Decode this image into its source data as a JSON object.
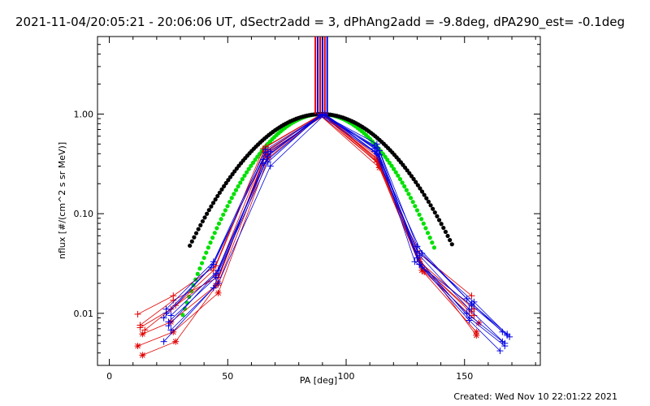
{
  "chart_data": {
    "type": "scatter",
    "title": "2021-11-04/20:05:21 - 20:06:06 UT, dSectr2add = 3, dPhAng2add = -9.8deg, dPA290_est= -0.1deg",
    "xlabel": "PA [deg]",
    "ylabel": "nflux [#/(cm^2 s sr MeV)]",
    "xlim": [
      -5,
      182
    ],
    "ylim": [
      0.003,
      6
    ],
    "yscale": "log",
    "xticks": [
      0,
      50,
      100,
      150
    ],
    "xtick_labels": [
      "0",
      "50",
      "100",
      "150"
    ],
    "yticks": [
      0.01,
      0.1,
      1.0
    ],
    "ytick_labels": [
      "0.01",
      "0.10",
      "1.00"
    ],
    "grid": false,
    "legend": "none",
    "footer": "Created: Wed Nov 10 22:01:22 2021",
    "colors": {
      "red": "#e00000",
      "blue": "#0000e0",
      "green": "#00e000",
      "black": "#000000"
    },
    "vertical_bars": [
      {
        "x": 87,
        "color": "#e00000"
      },
      {
        "x": 88,
        "color": "#0000e0"
      },
      {
        "x": 89,
        "color": "#e00000"
      },
      {
        "x": 90,
        "color": "#0000e0"
      },
      {
        "x": 91,
        "color": "#e00000"
      },
      {
        "x": 92,
        "color": "#0000e0"
      }
    ],
    "fit_curves": [
      {
        "color": "#00e000",
        "center": 89.5,
        "sigma": 19.2,
        "x_min": 31,
        "x_max": 138
      },
      {
        "color": "#000000",
        "center": 89.5,
        "sigma": 22.5,
        "x_min": 34,
        "x_max": 145
      }
    ],
    "series": [
      {
        "color": "#e00000",
        "marker": "plus",
        "x": [
          12,
          27,
          45,
          66,
          89,
          113,
          131,
          153
        ],
        "y": [
          0.0098,
          0.015,
          0.03,
          0.47,
          0.98,
          0.33,
          0.04,
          0.015
        ]
      },
      {
        "color": "#e00000",
        "marker": "asterisk",
        "x": [
          14,
          28,
          46,
          67,
          90,
          114,
          131,
          155
        ],
        "y": [
          0.0038,
          0.0052,
          0.02,
          0.39,
          0.99,
          0.31,
          0.035,
          0.006
        ]
      },
      {
        "color": "#e00000",
        "marker": "plus",
        "x": [
          13,
          26,
          45,
          66,
          90,
          113,
          132,
          154
        ],
        "y": [
          0.0072,
          0.011,
          0.024,
          0.42,
          1.0,
          0.36,
          0.03,
          0.0095
        ]
      },
      {
        "color": "#e00000",
        "marker": "asterisk",
        "x": [
          12,
          27,
          46,
          67,
          89,
          114,
          132,
          155
        ],
        "y": [
          0.0047,
          0.0065,
          0.016,
          0.36,
          0.97,
          0.29,
          0.027,
          0.0065
        ]
      },
      {
        "color": "#e00000",
        "marker": "plus",
        "x": [
          15,
          28,
          44,
          65,
          90,
          113,
          131,
          154
        ],
        "y": [
          0.0068,
          0.012,
          0.027,
          0.45,
          1.0,
          0.38,
          0.033,
          0.011
        ]
      },
      {
        "color": "#e00000",
        "marker": "asterisk",
        "x": [
          14,
          26,
          45,
          66,
          91,
          114,
          133,
          156
        ],
        "y": [
          0.0062,
          0.0082,
          0.019,
          0.4,
          0.98,
          0.32,
          0.026,
          0.008
        ]
      },
      {
        "color": "#e00000",
        "marker": "plus",
        "x": [
          13,
          27,
          46,
          67,
          90,
          113,
          131,
          153
        ],
        "y": [
          0.0076,
          0.0135,
          0.023,
          0.44,
          0.99,
          0.35,
          0.031,
          0.0105
        ]
      },
      {
        "color": "#0000e0",
        "marker": "plus",
        "x": [
          24,
          44,
          66,
          90,
          113,
          130,
          151,
          166
        ],
        "y": [
          0.011,
          0.033,
          0.44,
          0.99,
          0.5,
          0.047,
          0.014,
          0.0065
        ]
      },
      {
        "color": "#0000e0",
        "marker": "plus",
        "x": [
          25,
          45,
          67,
          90,
          112,
          131,
          152,
          167
        ],
        "y": [
          0.0075,
          0.025,
          0.38,
          1.0,
          0.42,
          0.038,
          0.011,
          0.005
        ]
      },
      {
        "color": "#0000e0",
        "marker": "plus",
        "x": [
          23,
          43,
          65,
          89,
          113,
          129,
          153,
          168
        ],
        "y": [
          0.009,
          0.029,
          0.35,
          0.98,
          0.46,
          0.033,
          0.012,
          0.006
        ]
      },
      {
        "color": "#0000e0",
        "marker": "plus",
        "x": [
          26,
          46,
          68,
          91,
          114,
          132,
          152,
          165
        ],
        "y": [
          0.0068,
          0.02,
          0.3,
          0.99,
          0.39,
          0.029,
          0.0085,
          0.0042
        ]
      },
      {
        "color": "#0000e0",
        "marker": "plus",
        "x": [
          24,
          44,
          66,
          90,
          112,
          130,
          154,
          169
        ],
        "y": [
          0.01,
          0.031,
          0.41,
          1.0,
          0.48,
          0.042,
          0.013,
          0.0058
        ]
      },
      {
        "color": "#0000e0",
        "marker": "plus",
        "x": [
          25,
          45,
          67,
          89,
          113,
          131,
          151,
          166
        ],
        "y": [
          0.0082,
          0.023,
          0.33,
          0.97,
          0.4,
          0.031,
          0.01,
          0.0052
        ]
      },
      {
        "color": "#0000e0",
        "marker": "plus",
        "x": [
          23,
          44,
          65,
          90,
          114,
          130,
          152,
          167
        ],
        "y": [
          0.0052,
          0.018,
          0.32,
          0.99,
          0.43,
          0.036,
          0.009,
          0.0047
        ]
      },
      {
        "color": "#0000e0",
        "marker": "plus",
        "x": [
          26,
          46,
          68,
          91,
          112,
          132,
          153,
          168
        ],
        "y": [
          0.0095,
          0.027,
          0.42,
          1.0,
          0.45,
          0.04,
          0.0125,
          0.0062
        ]
      }
    ]
  }
}
